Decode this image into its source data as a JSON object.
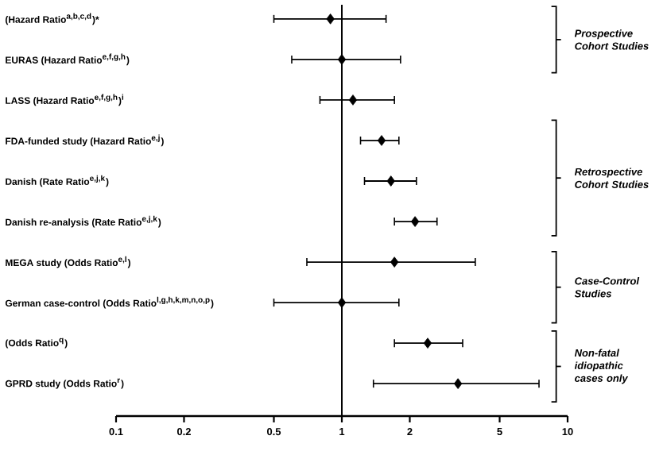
{
  "chart_data": {
    "type": "scatter",
    "orientation": "horizontal",
    "log": "x",
    "marker": "diamond",
    "color": "#000000",
    "categories": [
      "(Hazard Ratio$^{a,b,c,d}$)*",
      "EURAS (Hazard Ratio$^{e,f,g,h}$)",
      "LASS (Hazard Ratio$^{e,f,g,h}$)$^{i}$",
      "FDA-funded study (Hazard Ratio$^{e,j}$)",
      "Danish (Rate Ratio$^{e,j,k}$)",
      "Danish re-analysis (Rate Ratio$^{e,j,k}$)",
      "MEGA study (Odds Ratio$^{e,l}$)",
      "German case-control (Odds Ratio$^{l,g,h,k,m,n,o,p}$)",
      "(Odds Ratio$^{q}$)",
      "GPRD study (Odds Ratio$^{r}$)"
    ],
    "values": [
      0.89,
      1.0,
      1.12,
      1.5,
      1.65,
      2.11,
      1.71,
      1.0,
      2.4,
      3.27
    ],
    "errors": [
      [
        0.5,
        1.57
      ],
      [
        0.6,
        1.82
      ],
      [
        0.8,
        1.71
      ],
      [
        1.21,
        1.79
      ],
      [
        1.26,
        2.14
      ],
      [
        1.71,
        2.64
      ],
      [
        0.7,
        3.9
      ],
      [
        0.5,
        1.79
      ],
      [
        1.71,
        3.43
      ],
      [
        1.38,
        7.47
      ]
    ],
    "xlim": [
      0.1,
      10
    ],
    "xticks": [
      0.1,
      0.2,
      0.5,
      1,
      2,
      5,
      10
    ],
    "ref_lines": [
      {
        "axis": "x",
        "value": 1
      }
    ],
    "annotations": [
      "Prospective Cohort Studies",
      "Retrospective Cohort Studies",
      "Case-Control Studies",
      "Non-fatal idiopathic cases only"
    ]
  }
}
